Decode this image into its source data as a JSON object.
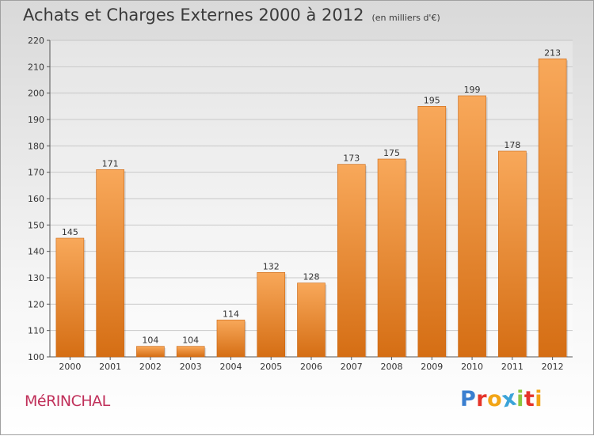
{
  "header": {
    "title": "Achats et Charges Externes 2000 à 2012",
    "unit": "(en milliers d'€)"
  },
  "footer": {
    "town": "MéRINCHAL",
    "brand_letters": [
      "P",
      "r",
      "o",
      "x",
      "i",
      "t",
      "i"
    ],
    "brand_colors": [
      "#3a7fd0",
      "#e5342a",
      "#f2a516",
      "#3aa3d8",
      "#8cc63f",
      "#e5342a",
      "#f2a516"
    ]
  },
  "colors": {
    "bar_top": "#f8a85a",
    "bar_bottom": "#d56e14",
    "grid": "#c8c8c8",
    "axis": "#555555"
  },
  "chart_data": {
    "type": "bar",
    "categories": [
      "2000",
      "2001",
      "2002",
      "2003",
      "2004",
      "2005",
      "2006",
      "2007",
      "2008",
      "2009",
      "2010",
      "2011",
      "2012"
    ],
    "values": [
      145,
      171,
      104,
      104,
      114,
      132,
      128,
      173,
      175,
      195,
      199,
      178,
      213
    ],
    "ylim": [
      100,
      220
    ],
    "yticks": [
      100,
      110,
      120,
      130,
      140,
      150,
      160,
      170,
      180,
      190,
      200,
      210,
      220
    ],
    "grid": true
  }
}
